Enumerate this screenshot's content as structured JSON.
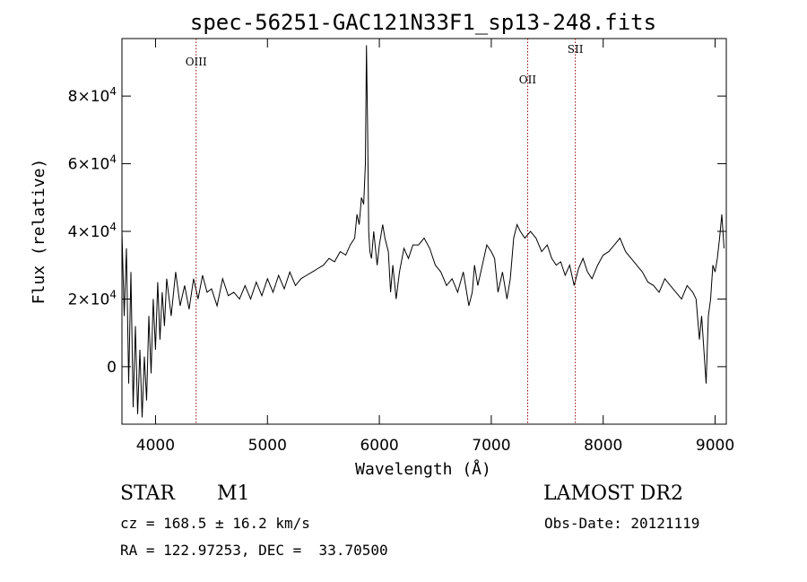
{
  "chart_data": {
    "type": "line",
    "title": "spec-56251-GAC121N33F1_sp13-248.fits",
    "xlabel": "Wavelength (Å)",
    "ylabel": "Flux (relative)",
    "xlim": [
      3700,
      9100
    ],
    "ylim": [
      -17000,
      97000
    ],
    "x_ticks": [
      4000,
      5000,
      6000,
      7000,
      8000,
      9000
    ],
    "x_tick_labels": [
      "4000",
      "5000",
      "6000",
      "7000",
      "8000",
      "9000"
    ],
    "y_ticks": [
      0,
      20000,
      40000,
      60000,
      80000
    ],
    "y_tick_labels": [
      {
        "mant": "0",
        "exp": ""
      },
      {
        "mant": "2×10",
        "exp": "4"
      },
      {
        "mant": "4×10",
        "exp": "4"
      },
      {
        "mant": "6×10",
        "exp": "4"
      },
      {
        "mant": "8×10",
        "exp": "4"
      }
    ],
    "grid": false,
    "line_color": "#000000",
    "marker_color": "#8b0000",
    "lines": [
      {
        "label": "OIII",
        "x": 4363
      },
      {
        "label": "OII",
        "x": 7325
      },
      {
        "label": "SII",
        "x": 7751
      }
    ],
    "x": [
      3700,
      3720,
      3740,
      3760,
      3780,
      3800,
      3820,
      3840,
      3860,
      3880,
      3900,
      3920,
      3940,
      3960,
      3980,
      4000,
      4020,
      4040,
      4060,
      4080,
      4100,
      4140,
      4180,
      4220,
      4260,
      4300,
      4340,
      4380,
      4420,
      4460,
      4500,
      4550,
      4600,
      4650,
      4700,
      4750,
      4800,
      4850,
      4900,
      4950,
      5000,
      5050,
      5100,
      5150,
      5200,
      5250,
      5300,
      5350,
      5400,
      5450,
      5500,
      5550,
      5600,
      5650,
      5700,
      5740,
      5780,
      5800,
      5820,
      5840,
      5860,
      5875,
      5885,
      5895,
      5905,
      5915,
      5930,
      5950,
      5980,
      6000,
      6030,
      6050,
      6080,
      6100,
      6120,
      6150,
      6180,
      6220,
      6260,
      6300,
      6350,
      6400,
      6450,
      6500,
      6550,
      6600,
      6650,
      6700,
      6750,
      6800,
      6830,
      6850,
      6880,
      6920,
      6960,
      7000,
      7030,
      7060,
      7100,
      7140,
      7170,
      7200,
      7230,
      7260,
      7300,
      7350,
      7400,
      7450,
      7500,
      7540,
      7580,
      7620,
      7660,
      7700,
      7740,
      7780,
      7820,
      7860,
      7900,
      7950,
      8000,
      8050,
      8100,
      8150,
      8200,
      8250,
      8300,
      8350,
      8400,
      8450,
      8500,
      8550,
      8600,
      8650,
      8700,
      8750,
      8800,
      8830,
      8860,
      8880,
      8900,
      8920,
      8940,
      8960,
      8980,
      9000,
      9020,
      9040,
      9060,
      9080
    ],
    "y": [
      40000,
      15000,
      35000,
      -5000,
      28000,
      -12000,
      12000,
      -14000,
      5000,
      -15000,
      3000,
      -10000,
      15000,
      -2000,
      20000,
      5000,
      25000,
      8000,
      22000,
      12000,
      26000,
      15000,
      28000,
      18000,
      24000,
      17000,
      26000,
      20000,
      27000,
      22000,
      23000,
      18000,
      26000,
      21000,
      22000,
      20000,
      24000,
      20000,
      25000,
      21000,
      26000,
      22000,
      27000,
      23000,
      28000,
      24000,
      26000,
      27000,
      28000,
      29000,
      30000,
      32000,
      31000,
      34000,
      33000,
      36000,
      38000,
      45000,
      42000,
      50000,
      48000,
      60000,
      95000,
      70000,
      40000,
      34000,
      32000,
      40000,
      30000,
      36000,
      42000,
      38000,
      34000,
      22000,
      30000,
      20000,
      28000,
      35000,
      32000,
      36000,
      36000,
      38000,
      35000,
      30000,
      28000,
      24000,
      26000,
      22000,
      28000,
      18000,
      22000,
      30000,
      24000,
      30000,
      36000,
      34000,
      32000,
      22000,
      28000,
      20000,
      26000,
      38000,
      42000,
      40000,
      38000,
      40000,
      38000,
      34000,
      36000,
      32000,
      30000,
      31000,
      27000,
      30000,
      24000,
      29000,
      32000,
      28000,
      26000,
      30000,
      33000,
      34000,
      36000,
      38000,
      34000,
      32000,
      30000,
      28000,
      25000,
      24000,
      22000,
      26000,
      24000,
      22000,
      20000,
      24000,
      22000,
      20000,
      8000,
      15000,
      5000,
      -5000,
      15000,
      20000,
      30000,
      28000,
      32000,
      38000,
      45000,
      35000
    ]
  },
  "info": {
    "object_class": "STAR",
    "subclass": "M1",
    "survey": "LAMOST DR2",
    "cz": "cz = 168.5 ± 16.2 km/s",
    "obs_date": "Obs-Date: 20121119",
    "radec": "RA = 122.97253, DEC =  33.70500"
  }
}
